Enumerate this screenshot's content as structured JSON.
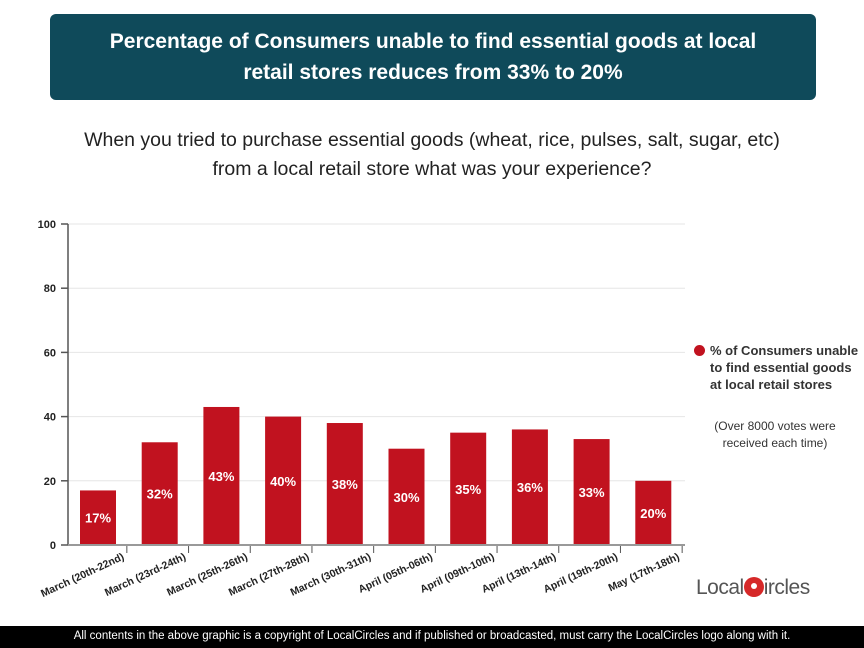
{
  "header": {
    "title": "Percentage of Consumers unable to find essential goods at local retail stores reduces from 33% to 20%"
  },
  "question": "When you tried to purchase essential goods (wheat, rice, pulses, salt, sugar, etc) from a local retail store what was your experience?",
  "legend": {
    "label": "% of Consumers unable to find essential goods at local retail stores",
    "note": "(Over 8000 votes were received each time)"
  },
  "logo": {
    "text_left": "Local",
    "text_right": "ircles"
  },
  "footer": "All contents in the above graphic is a copyright of LocalCircles and if published or broadcasted, must carry the LocalCircles logo along with it.",
  "colors": {
    "banner": "#0f4a5a",
    "bar": "#c1121f"
  },
  "chart_data": {
    "type": "bar",
    "categories": [
      "March (20th-22nd)",
      "March (23rd-24th)",
      "March (25th-26th)",
      "March (27th-28th)",
      "March (30th-31th)",
      "April (05th-06th)",
      "April (09th-10th)",
      "April (13th-14th)",
      "April (19th-20th)",
      "May (17th-18th)"
    ],
    "series": [
      {
        "name": "% of Consumers unable to find essential goods at local retail stores",
        "values": [
          17,
          32,
          43,
          40,
          38,
          30,
          35,
          36,
          33,
          20
        ]
      }
    ],
    "data_labels": [
      "17%",
      "32%",
      "43%",
      "40%",
      "38%",
      "30%",
      "35%",
      "36%",
      "33%",
      "20%"
    ],
    "ylim": [
      0,
      100
    ],
    "yticks": [
      0,
      20,
      40,
      60,
      80,
      100
    ],
    "grid": true,
    "legend_position": "right"
  }
}
